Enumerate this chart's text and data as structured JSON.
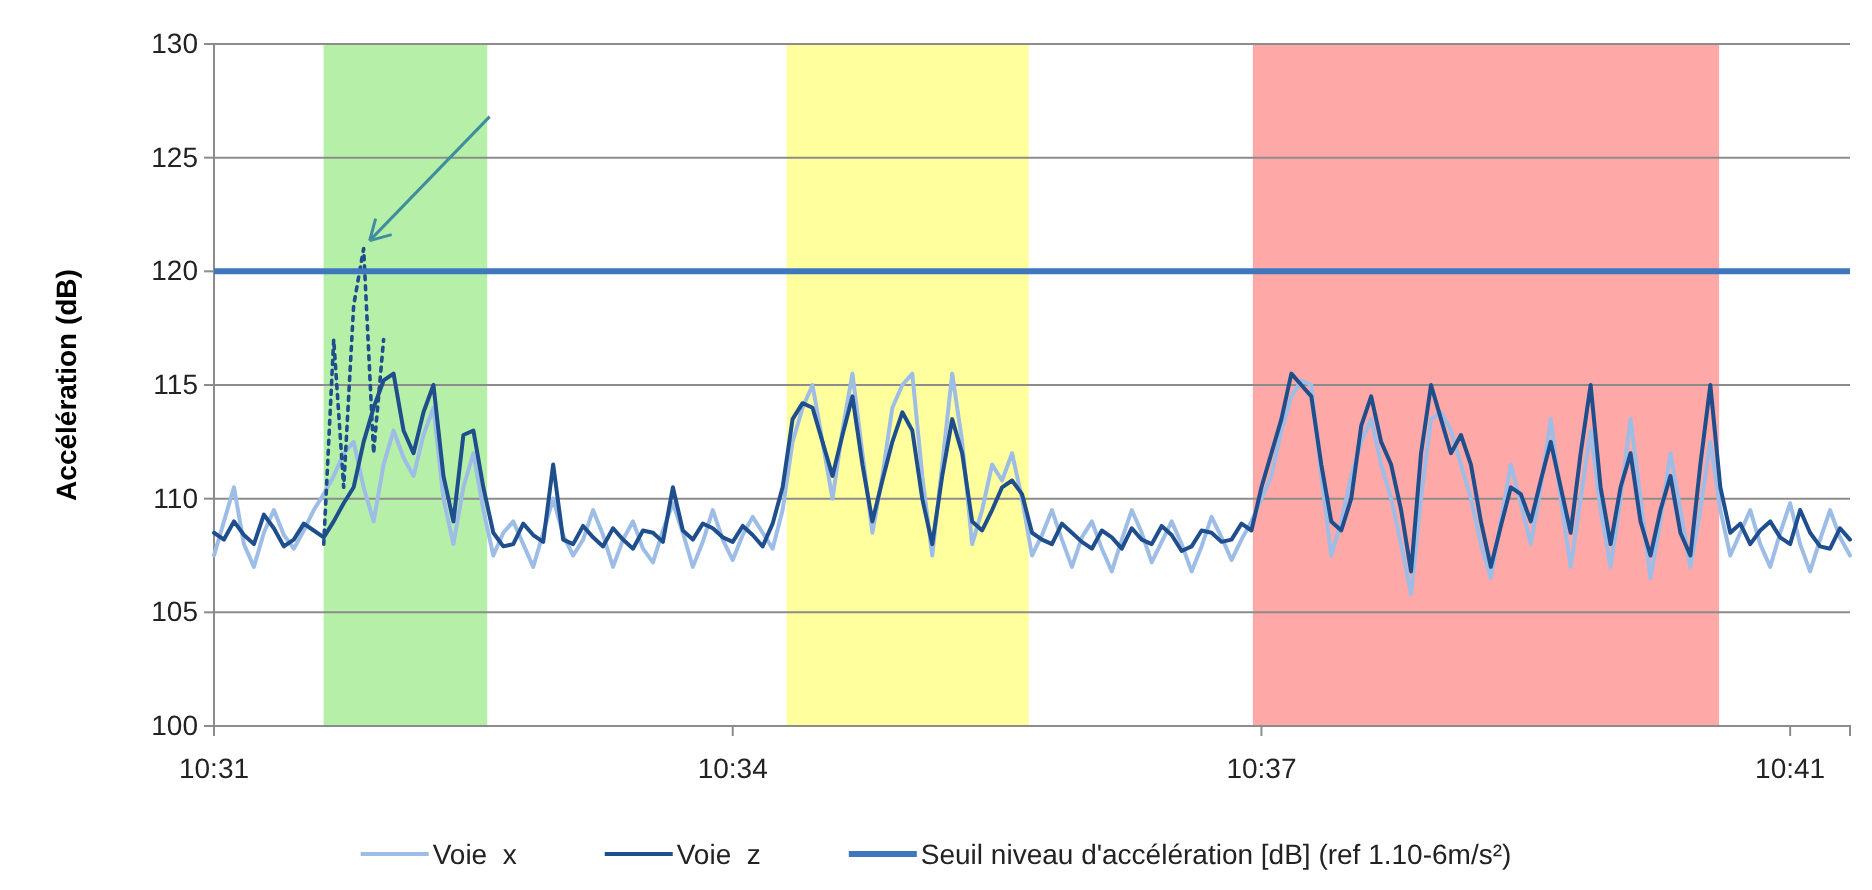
{
  "chart_data": {
    "type": "line",
    "ylabel": "Accélération (dB)",
    "categories": [
      "10:31",
      null,
      null,
      null,
      null,
      null,
      null,
      null,
      null,
      null,
      null,
      null,
      null,
      null,
      null,
      null,
      null,
      null,
      null,
      null,
      null,
      null,
      null,
      null,
      null,
      null,
      null,
      null,
      null,
      null,
      null,
      null,
      null,
      null,
      null,
      null,
      null,
      null,
      null,
      null,
      null,
      null,
      null,
      null,
      null,
      null,
      null,
      null,
      null,
      null,
      null,
      null,
      "10:34",
      null,
      null,
      null,
      null,
      null,
      null,
      null,
      null,
      null,
      null,
      null,
      null,
      null,
      null,
      null,
      null,
      null,
      null,
      null,
      null,
      null,
      null,
      null,
      null,
      null,
      null,
      null,
      null,
      null,
      null,
      null,
      null,
      null,
      null,
      null,
      null,
      null,
      null,
      null,
      null,
      null,
      null,
      null,
      null,
      null,
      null,
      null,
      null,
      null,
      null,
      null,
      null,
      "10:37",
      null,
      null,
      null,
      null,
      null,
      null,
      null,
      null,
      null,
      null,
      null,
      null,
      null,
      null,
      null,
      null,
      null,
      null,
      null,
      null,
      null,
      null,
      null,
      null,
      null,
      null,
      null,
      null,
      null,
      null,
      null,
      null,
      null,
      null,
      null,
      null,
      null,
      null,
      null,
      null,
      null,
      null,
      null,
      null,
      null,
      null,
      null,
      null,
      null,
      null,
      null,
      null,
      "10:41",
      null,
      null,
      null,
      null,
      null,
      null
    ],
    "ylim": [
      100,
      130
    ],
    "yticks": [
      100,
      105,
      110,
      115,
      120,
      125,
      130
    ],
    "grid": "y",
    "legend": "bottom",
    "marker": "none",
    "series": [
      {
        "name": "Voie  x",
        "color": "#9dbde6",
        "values": [
          107.5,
          109,
          110.5,
          108,
          107,
          108.5,
          109.5,
          108.4,
          107.8,
          108.6,
          109.5,
          110.2,
          111,
          112,
          112.5,
          110.5,
          109,
          111.5,
          113,
          111.8,
          111,
          112.8,
          114,
          110,
          108,
          110.5,
          112,
          109.5,
          107.5,
          108.5,
          109,
          108,
          107,
          108.5,
          110,
          108.4,
          107.5,
          108.2,
          109.5,
          108.4,
          107,
          108.2,
          109,
          107.8,
          107.2,
          108.6,
          109.8,
          108.5,
          107,
          108.1,
          109.5,
          108.2,
          107.3,
          108.4,
          109.2,
          108.5,
          107.8,
          109.5,
          112.5,
          114,
          115,
          112.5,
          110,
          113,
          115.5,
          112,
          108.5,
          111,
          114,
          115,
          115.5,
          111,
          107.5,
          111.5,
          115.5,
          112.5,
          108,
          109.5,
          111.5,
          110.8,
          112,
          110,
          107.5,
          108.4,
          109.5,
          108.2,
          107,
          108.3,
          109,
          107.8,
          106.8,
          108.2,
          109.5,
          108.5,
          107.2,
          108.1,
          109,
          108,
          106.8,
          107.9,
          109.2,
          108.3,
          107.3,
          108.2,
          109,
          110,
          111,
          113,
          114.5,
          115.2,
          115,
          111,
          107.5,
          109,
          111,
          112.5,
          113.5,
          111.5,
          110,
          108,
          105.8,
          110,
          113.5,
          113.8,
          113,
          111.5,
          110,
          108,
          106.5,
          109,
          111.5,
          109.8,
          108,
          110.5,
          113.5,
          110,
          107,
          110,
          113,
          109.5,
          107,
          110,
          113.5,
          110,
          106.5,
          109,
          112,
          109.5,
          107,
          109.5,
          112.5,
          109.5,
          107.5,
          108.5,
          109.5,
          108,
          107,
          108.5,
          109.8,
          108,
          106.8,
          108.2,
          109.5,
          108.3,
          107.5
        ]
      },
      {
        "name": "Voie  z",
        "color": "#1f4e8c",
        "values": [
          108.5,
          108.2,
          109,
          108.4,
          108,
          109.3,
          108.7,
          107.9,
          108.2,
          108.9,
          108.6,
          108.3,
          109,
          109.8,
          110.5,
          112.5,
          114,
          115.2,
          115.5,
          113,
          112,
          113.8,
          115,
          111,
          109,
          112.8,
          113,
          110.5,
          108.5,
          107.9,
          108,
          108.9,
          108.4,
          108.1,
          111.5,
          108.2,
          108,
          108.8,
          108.3,
          107.9,
          108.7,
          108.2,
          107.8,
          108.6,
          108.5,
          108.1,
          110.5,
          108.6,
          108.2,
          108.9,
          108.7,
          108.3,
          108.1,
          108.8,
          108.4,
          107.9,
          108.9,
          110.5,
          113.5,
          114.2,
          114,
          112.5,
          111,
          112.8,
          114.5,
          111.5,
          109,
          110.8,
          112.5,
          113.8,
          113,
          110,
          108,
          111,
          113.5,
          112,
          109,
          108.6,
          109.5,
          110.5,
          110.8,
          110.2,
          108.5,
          108.2,
          108,
          108.9,
          108.5,
          108.1,
          107.8,
          108.6,
          108.3,
          107.8,
          108.7,
          108.2,
          108,
          108.8,
          108.4,
          107.7,
          107.9,
          108.6,
          108.5,
          108.1,
          108.2,
          108.9,
          108.6,
          110.5,
          112,
          113.5,
          115.5,
          115,
          114.5,
          111.5,
          109,
          108.6,
          110,
          113.2,
          114.5,
          112.5,
          111.5,
          109.5,
          106.8,
          112,
          115,
          113.5,
          112,
          112.8,
          111.5,
          109,
          107,
          108.8,
          110.5,
          110.2,
          109,
          110.8,
          112.5,
          110.5,
          108.5,
          112,
          115,
          110.5,
          108,
          110.5,
          112,
          109,
          107.5,
          109.5,
          111,
          108.5,
          107.5,
          111.5,
          115,
          110.5,
          108.5,
          108.9,
          108,
          108.6,
          109,
          108.3,
          108,
          109.5,
          108.5,
          107.9,
          107.8,
          108.7,
          108.2
        ]
      },
      {
        "type": "line",
        "line_style": "dotted",
        "color": "#1f4e8c",
        "values": [
          null,
          null,
          null,
          null,
          null,
          null,
          null,
          null,
          null,
          null,
          null,
          108,
          117,
          110.5,
          118.5,
          121,
          112,
          117,
          null,
          null,
          null,
          null,
          null,
          null,
          null,
          null,
          null,
          null,
          null,
          null,
          null,
          null,
          null,
          null,
          null,
          null,
          null,
          null,
          null,
          null,
          null,
          null,
          null,
          null,
          null,
          null,
          null,
          null,
          null,
          null,
          null,
          null,
          null,
          null,
          null,
          null,
          null,
          null,
          null,
          null,
          null,
          null,
          null,
          null,
          null,
          null,
          null,
          null,
          null,
          null,
          null,
          null,
          null,
          null,
          null,
          null,
          null,
          null,
          null,
          null,
          null,
          null,
          null,
          null,
          null,
          null,
          null,
          null,
          null,
          null,
          null,
          null,
          null,
          null,
          null,
          null,
          null,
          null,
          null,
          null,
          null,
          null,
          null,
          null,
          null,
          null,
          null,
          null,
          null,
          null,
          null,
          null,
          null,
          null,
          null,
          null,
          null,
          null,
          null,
          null,
          null,
          null,
          null,
          null,
          null,
          null,
          null,
          null,
          null,
          null,
          null,
          null,
          null,
          null,
          null,
          null,
          null,
          null,
          null,
          null,
          null,
          null,
          null,
          null,
          null,
          null,
          null,
          null,
          null,
          null,
          null,
          null,
          null,
          null,
          null,
          null,
          null,
          null,
          null,
          null,
          null,
          null,
          null,
          null,
          null
        ]
      }
    ],
    "ref_lines": [
      {
        "axis": "y",
        "value": 120,
        "label": "Seuil niveau d'accélération [dB] (ref 1.10-6m/s²)",
        "color": "#3f77bd"
      }
    ]
  }
}
